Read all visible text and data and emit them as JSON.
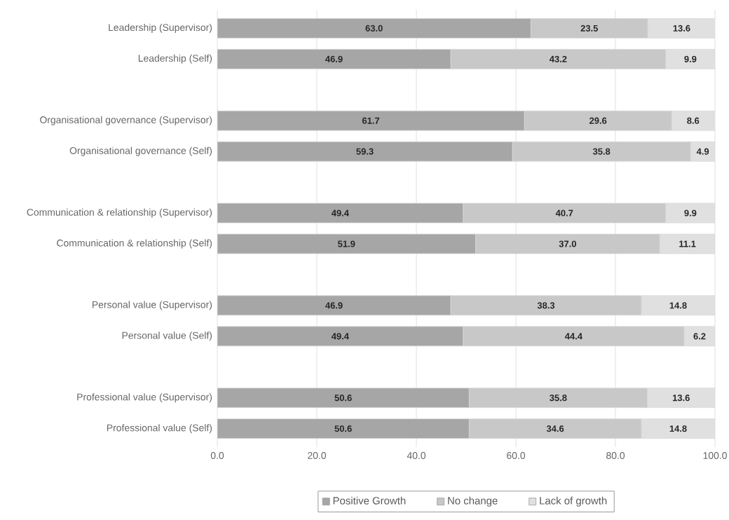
{
  "chart_data": {
    "type": "bar",
    "orientation": "horizontal",
    "stacked": true,
    "grid": "x",
    "legend": "bottom",
    "categories": [
      "Leadership (Supervisor)",
      "Leadership (Self)",
      null,
      "Organisational governance (Supervisor)",
      "Organisational governance (Self)",
      null,
      "Communication & relationship (Supervisor)",
      "Communication & relationship (Self)",
      null,
      "Personal value (Supervisor)",
      "Personal value (Self)",
      null,
      "Professional value (Supervisor)",
      "Professional value (Self)"
    ],
    "series": [
      {
        "name": "Positive Growth",
        "color": "#a6a6a6",
        "values": [
          63.0,
          46.9,
          null,
          61.7,
          59.3,
          null,
          49.4,
          51.9,
          null,
          46.9,
          49.4,
          null,
          50.6,
          50.6
        ],
        "value_labels": [
          "63.0",
          "46.9",
          null,
          "61.7",
          "59.3",
          null,
          "49.4",
          "51.9",
          null,
          "46.9",
          "49.4",
          null,
          "50.6",
          "50.6"
        ]
      },
      {
        "name": "No change",
        "color": "#c8c8c8",
        "values": [
          23.5,
          43.2,
          null,
          29.6,
          35.8,
          null,
          40.7,
          37.0,
          null,
          38.3,
          44.4,
          null,
          35.8,
          34.6
        ],
        "value_labels": [
          "23.5",
          "43.2",
          null,
          "29.6",
          "35.8",
          null,
          "40.7",
          "37.0",
          null,
          "38.3",
          "44.4",
          null,
          "35.8",
          "34.6"
        ]
      },
      {
        "name": "Lack of growth",
        "color": "#e0e0e0",
        "values": [
          13.6,
          9.9,
          null,
          8.6,
          4.9,
          null,
          9.9,
          11.1,
          null,
          14.8,
          6.2,
          null,
          13.6,
          14.8
        ],
        "value_labels": [
          "13.6",
          "9.9",
          null,
          "8.6",
          "4.9",
          null,
          "9.9",
          "11.1",
          null,
          "14.8",
          "6.2",
          null,
          "13.6",
          "14.8"
        ]
      }
    ],
    "xlim": [
      0,
      100
    ],
    "xticks": [
      {
        "value": 0,
        "label": "0.0"
      },
      {
        "value": 20,
        "label": "20.0"
      },
      {
        "value": 40,
        "label": "40.0"
      },
      {
        "value": 60,
        "label": "60.0"
      },
      {
        "value": 80,
        "label": "80.0"
      },
      {
        "value": 100,
        "label": "100.0"
      }
    ]
  }
}
